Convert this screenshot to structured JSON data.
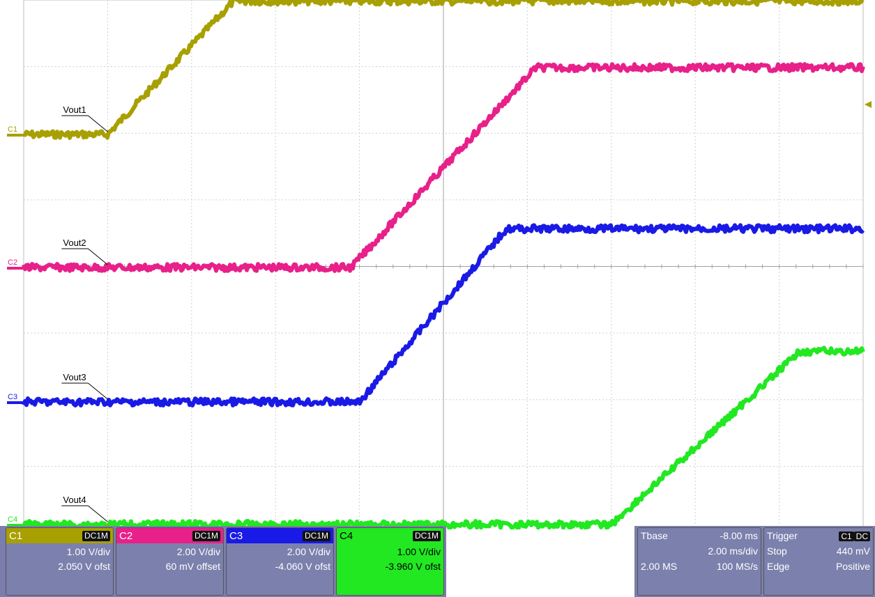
{
  "chart_data": {
    "type": "line",
    "title": "",
    "xlabel": "",
    "ylabel": "",
    "x_range_ms": [
      -8.0,
      12.0
    ],
    "grid": true,
    "series": [
      {
        "name": "Vout1",
        "channel": "C1",
        "color": "#a8a000",
        "low_div": 0.0,
        "high_div": 2.0,
        "rise_start_ms": -6.0,
        "rise_end_ms": -3.0
      },
      {
        "name": "Vout2",
        "channel": "C2",
        "color": "#e8208a",
        "low_div": 0.0,
        "high_div": 3.0,
        "rise_start_ms": -0.2,
        "rise_end_ms": 4.2
      },
      {
        "name": "Vout3",
        "channel": "C3",
        "color": "#1a1ae6",
        "low_div": 0.0,
        "high_div": 2.6,
        "rise_start_ms": 0.0,
        "rise_end_ms": 3.5
      },
      {
        "name": "Vout4",
        "channel": "C4",
        "color": "#22e822",
        "low_div": 0.0,
        "high_div": 2.6,
        "rise_start_ms": 6.0,
        "rise_end_ms": 10.5
      }
    ]
  },
  "channels": [
    {
      "name": "C1",
      "coupling": "DC1M",
      "scale": "1.00 V/div",
      "offset": "2.050 V ofst",
      "color": "#a8a000"
    },
    {
      "name": "C2",
      "coupling": "DC1M",
      "scale": "2.00 V/div",
      "offset": "60 mV offset",
      "color": "#e8208a"
    },
    {
      "name": "C3",
      "coupling": "DC1M",
      "scale": "2.00 V/div",
      "offset": "-4.060 V ofst",
      "color": "#1a1ae6"
    },
    {
      "name": "C4",
      "coupling": "DC1M",
      "scale": "1.00 V/div",
      "offset": "-3.960 V ofst",
      "color": "#22e822"
    }
  ],
  "timebase": {
    "label": "Tbase",
    "delay": "-8.00 ms",
    "per_div": "2.00 ms/div",
    "samples": "2.00 MS",
    "rate": "100 MS/s"
  },
  "trigger": {
    "label": "Trigger",
    "source_tag": "C1",
    "coupling_tag": "DC",
    "mode": "Stop",
    "level": "440 mV",
    "type": "Edge",
    "slope": "Positive"
  }
}
